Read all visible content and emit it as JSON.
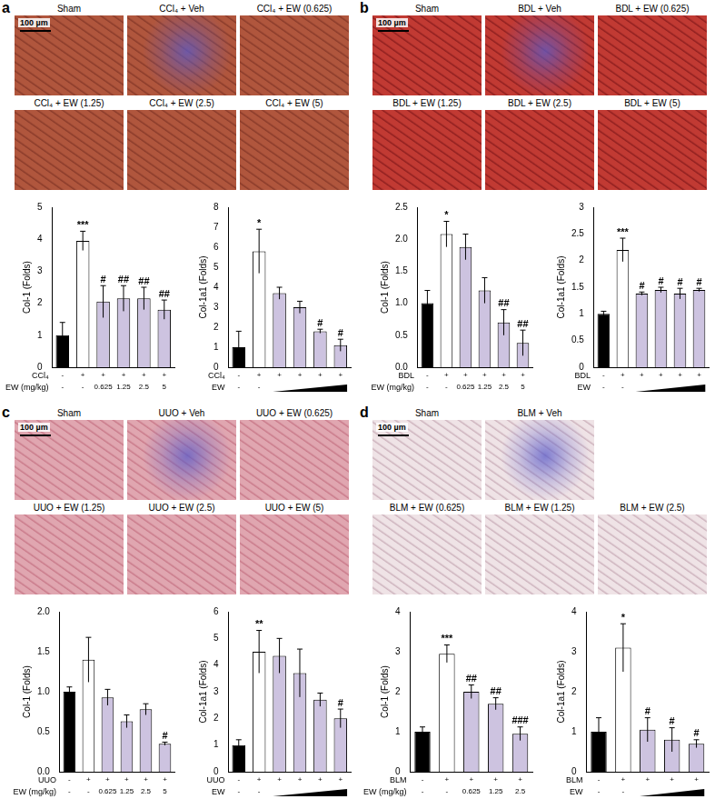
{
  "panels": [
    {
      "label": "a",
      "scale_bar": "100 µm",
      "image_rows": [
        [
          "Sham",
          "CCl₄ + Veh",
          "CCl₄ + EW (0.625)"
        ],
        [
          "CCl₄ + EW (1.25)",
          "CCl₄ + EW (2.5)",
          "CCl₄ + EW (5)"
        ]
      ]
    },
    {
      "label": "b",
      "scale_bar": "100 µm",
      "image_rows": [
        [
          "Sham",
          "BDL + Veh",
          "BDL + EW (0.625)"
        ],
        [
          "BDL + EW (1.25)",
          "BDL + EW (2.5)",
          "BDL + EW (5)"
        ]
      ]
    },
    {
      "label": "c",
      "scale_bar": "100 µm",
      "image_rows": [
        [
          "Sham",
          "UUO + Veh",
          "UUO + EW (0.625)"
        ],
        [
          "UUO + EW (1.25)",
          "UUO + EW (2.5)",
          "UUO + EW (5)"
        ]
      ]
    },
    {
      "label": "d",
      "scale_bar": "100 µm",
      "image_rows": [
        [
          "Sham",
          "BLM + Veh"
        ],
        [
          "BLM + EW (0.625)",
          "BLM + EW (1.25)",
          "BLM + EW (2.5)"
        ]
      ]
    }
  ],
  "chart_data": [
    {
      "type": "bar",
      "y_label": "Col-1 (Folds)",
      "row_labels": [
        "CCl₄",
        "EW (mg/kg)"
      ],
      "categories": [
        [
          "-",
          "-"
        ],
        [
          "+",
          "-"
        ],
        [
          "+",
          "0.625"
        ],
        [
          "+",
          "1.25"
        ],
        [
          "+",
          "2.5"
        ],
        [
          "+",
          "5"
        ]
      ],
      "values": [
        1.0,
        3.95,
        2.05,
        2.15,
        2.15,
        1.8
      ],
      "errors": [
        0.4,
        0.3,
        0.5,
        0.4,
        0.35,
        0.3
      ],
      "annotations": [
        null,
        "***",
        "#",
        "##",
        "##",
        "##"
      ],
      "colors": [
        "#000000",
        "#ffffff",
        "#cdc3e0",
        "#cdc3e0",
        "#cdc3e0",
        "#cdc3e0"
      ],
      "ylim": [
        0,
        5
      ],
      "yticks": [
        0,
        1,
        2,
        3,
        4,
        5
      ],
      "grid": false
    },
    {
      "type": "bar",
      "y_label": "Col-1a1 (Folds)",
      "row_labels": [
        "CCl₄",
        "EW"
      ],
      "categories": [
        [
          "-",
          "-"
        ],
        [
          "+",
          "-"
        ],
        [
          "+",
          null
        ],
        [
          "+",
          null
        ],
        [
          "+",
          null
        ],
        [
          "+",
          null
        ]
      ],
      "values": [
        1.0,
        5.8,
        3.7,
        3.0,
        1.8,
        1.1
      ],
      "errors": [
        0.8,
        1.1,
        0.3,
        0.3,
        0.1,
        0.3
      ],
      "annotations": [
        null,
        "*",
        null,
        null,
        "#",
        "#"
      ],
      "colors": [
        "#000000",
        "#ffffff",
        "#cdc3e0",
        "#cdc3e0",
        "#cdc3e0",
        "#cdc3e0"
      ],
      "ylim": [
        0,
        8
      ],
      "yticks": [
        0,
        1,
        2,
        3,
        4,
        5,
        6,
        7,
        8
      ],
      "grid": false
    },
    {
      "type": "bar",
      "y_label": "Col-1 (Folds)",
      "row_labels": [
        "BDL",
        "EW (mg/kg)"
      ],
      "categories": [
        [
          "-",
          "-"
        ],
        [
          "+",
          "-"
        ],
        [
          "+",
          "0.625"
        ],
        [
          "+",
          "1.25"
        ],
        [
          "+",
          "2.5"
        ],
        [
          "+",
          "5"
        ]
      ],
      "values": [
        1.0,
        2.08,
        1.88,
        1.2,
        0.7,
        0.38
      ],
      "errors": [
        0.2,
        0.2,
        0.2,
        0.2,
        0.2,
        0.2
      ],
      "annotations": [
        null,
        "*",
        null,
        null,
        "##",
        "##"
      ],
      "colors": [
        "#000000",
        "#ffffff",
        "#cdc3e0",
        "#cdc3e0",
        "#cdc3e0",
        "#cdc3e0"
      ],
      "ylim": [
        0,
        2.5
      ],
      "yticks": [
        {
          "value": 0,
          "label": "0.0"
        },
        {
          "value": 0.5,
          "label": "0.5"
        },
        {
          "value": 1,
          "label": "1.0"
        },
        {
          "value": 1.5,
          "label": "1.5"
        },
        {
          "value": 2,
          "label": "2.0"
        },
        {
          "value": 2.5,
          "label": "2.5"
        }
      ],
      "grid": false
    },
    {
      "type": "bar",
      "y_label": "Col-1a1 (Folds)",
      "row_labels": [
        "BDL",
        "EW"
      ],
      "categories": [
        [
          "-",
          "-"
        ],
        [
          "+",
          "-"
        ],
        [
          "+",
          null
        ],
        [
          "+",
          null
        ],
        [
          "+",
          null
        ],
        [
          "+",
          null
        ]
      ],
      "values": [
        1.0,
        2.2,
        1.38,
        1.45,
        1.38,
        1.45
      ],
      "errors": [
        0.05,
        0.22,
        0.03,
        0.05,
        0.1,
        0.03
      ],
      "annotations": [
        null,
        "***",
        "#",
        "#",
        "#",
        "#"
      ],
      "colors": [
        "#000000",
        "#ffffff",
        "#cdc3e0",
        "#cdc3e0",
        "#cdc3e0",
        "#cdc3e0"
      ],
      "ylim": [
        0,
        3
      ],
      "yticks": [
        0,
        0.5,
        1,
        1.5,
        2,
        2.5,
        3
      ],
      "grid": false
    },
    {
      "type": "bar",
      "y_label": "Col-1 (Folds)",
      "row_labels": [
        "UUO",
        "EW (mg/kg)"
      ],
      "categories": [
        [
          "-",
          "-"
        ],
        [
          "+",
          "-"
        ],
        [
          "+",
          "0.625"
        ],
        [
          "+",
          "1.25"
        ],
        [
          "+",
          "2.5"
        ],
        [
          "+",
          "5"
        ]
      ],
      "values": [
        1.0,
        1.4,
        0.93,
        0.63,
        0.78,
        0.35
      ],
      "errors": [
        0.06,
        0.28,
        0.1,
        0.08,
        0.07,
        0.02
      ],
      "annotations": [
        null,
        null,
        null,
        null,
        null,
        "#"
      ],
      "colors": [
        "#000000",
        "#ffffff",
        "#cdc3e0",
        "#cdc3e0",
        "#cdc3e0",
        "#cdc3e0"
      ],
      "ylim": [
        0,
        2
      ],
      "yticks": [
        {
          "value": 0,
          "label": "0.0"
        },
        {
          "value": 0.5,
          "label": "0.5"
        },
        {
          "value": 1,
          "label": "1.0"
        },
        {
          "value": 1.5,
          "label": "1.5"
        },
        {
          "value": 2,
          "label": "2.0"
        }
      ],
      "grid": false
    },
    {
      "type": "bar",
      "y_label": "Col-1a1 (Folds)",
      "row_labels": [
        "UUO",
        "EW"
      ],
      "categories": [
        [
          "-",
          "-"
        ],
        [
          "+",
          "-"
        ],
        [
          "+",
          null
        ],
        [
          "+",
          null
        ],
        [
          "+",
          null
        ],
        [
          "+",
          null
        ]
      ],
      "values": [
        1.0,
        4.5,
        4.35,
        3.7,
        2.7,
        2.0
      ],
      "errors": [
        0.2,
        0.8,
        0.65,
        0.9,
        0.25,
        0.35
      ],
      "annotations": [
        null,
        "**",
        null,
        null,
        null,
        "#"
      ],
      "colors": [
        "#000000",
        "#ffffff",
        "#cdc3e0",
        "#cdc3e0",
        "#cdc3e0",
        "#cdc3e0"
      ],
      "ylim": [
        0,
        6
      ],
      "yticks": [
        0,
        1,
        2,
        3,
        4,
        5,
        6
      ],
      "grid": false
    },
    {
      "type": "bar",
      "y_label": "Col-1 (Folds)",
      "row_labels": [
        "BLM",
        "EW (mg/kg)"
      ],
      "categories": [
        [
          "-",
          "-"
        ],
        [
          "+",
          "-"
        ],
        [
          "+",
          "0.625"
        ],
        [
          "+",
          "1.25"
        ],
        [
          "+",
          "2.5"
        ]
      ],
      "values": [
        1.0,
        2.95,
        2.0,
        1.7,
        0.95
      ],
      "errors": [
        0.12,
        0.22,
        0.17,
        0.15,
        0.17
      ],
      "annotations": [
        null,
        "***",
        "##",
        "##",
        "###"
      ],
      "colors": [
        "#000000",
        "#ffffff",
        "#cdc3e0",
        "#cdc3e0",
        "#cdc3e0"
      ],
      "ylim": [
        0,
        4
      ],
      "yticks": [
        0,
        1,
        2,
        3,
        4
      ],
      "grid": false
    },
    {
      "type": "bar",
      "y_label": "Col-1a1 (Folds)",
      "row_labels": [
        "BLM",
        "EW"
      ],
      "categories": [
        [
          "-",
          "-"
        ],
        [
          "+",
          "-"
        ],
        [
          "+",
          null
        ],
        [
          "+",
          null
        ],
        [
          "+",
          null
        ]
      ],
      "values": [
        1.0,
        3.1,
        1.05,
        0.8,
        0.7
      ],
      "errors": [
        0.35,
        0.6,
        0.3,
        0.3,
        0.1
      ],
      "annotations": [
        null,
        "*",
        "#",
        "#",
        "#"
      ],
      "colors": [
        "#000000",
        "#ffffff",
        "#cdc3e0",
        "#cdc3e0",
        "#cdc3e0"
      ],
      "ylim": [
        0,
        4
      ],
      "yticks": [
        0,
        1,
        2,
        3,
        4
      ],
      "grid": false
    }
  ]
}
